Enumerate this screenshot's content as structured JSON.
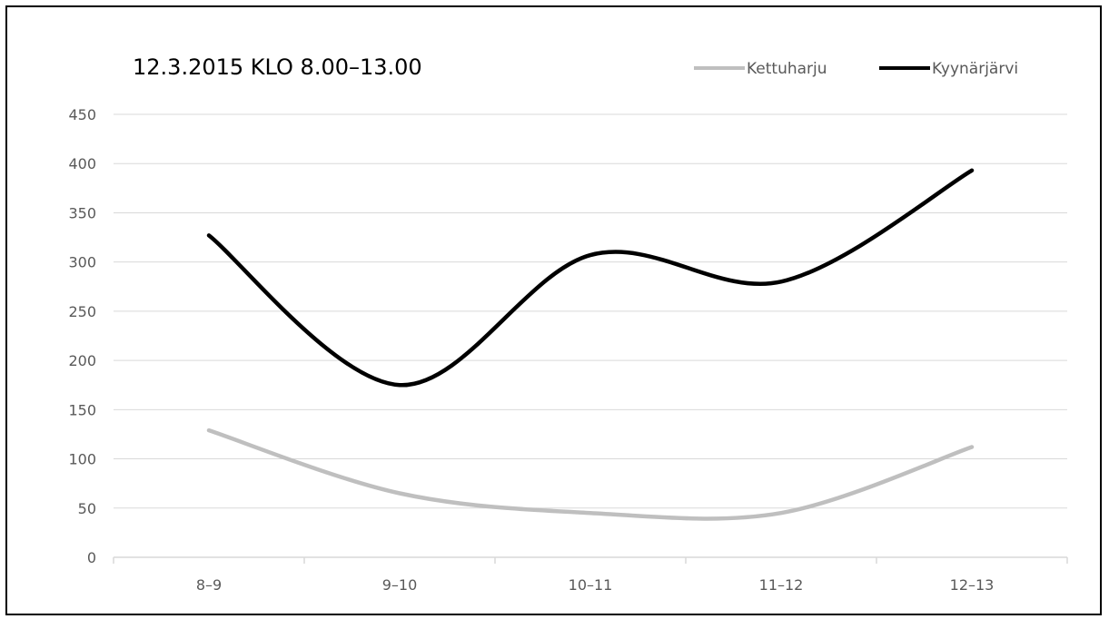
{
  "chart_data": {
    "type": "line",
    "title": "12.3.2015 KLO 8.00–13.00",
    "xlabel": "",
    "ylabel": "",
    "categories": [
      "8–9",
      "9–10",
      "10–11",
      "11–12",
      "12–13"
    ],
    "ylim": [
      0,
      450
    ],
    "yticks": [
      0,
      50,
      100,
      150,
      200,
      250,
      300,
      350,
      400,
      450
    ],
    "grid": true,
    "smooth": true,
    "legend_position": "top-right",
    "series": [
      {
        "name": "Kettuharju",
        "values": [
          129,
          65,
          45,
          45,
          112
        ],
        "color": "#bfbfbf"
      },
      {
        "name": "Kyynärjärvi",
        "values": [
          327,
          175,
          307,
          280,
          393
        ],
        "color": "#000000"
      }
    ]
  }
}
